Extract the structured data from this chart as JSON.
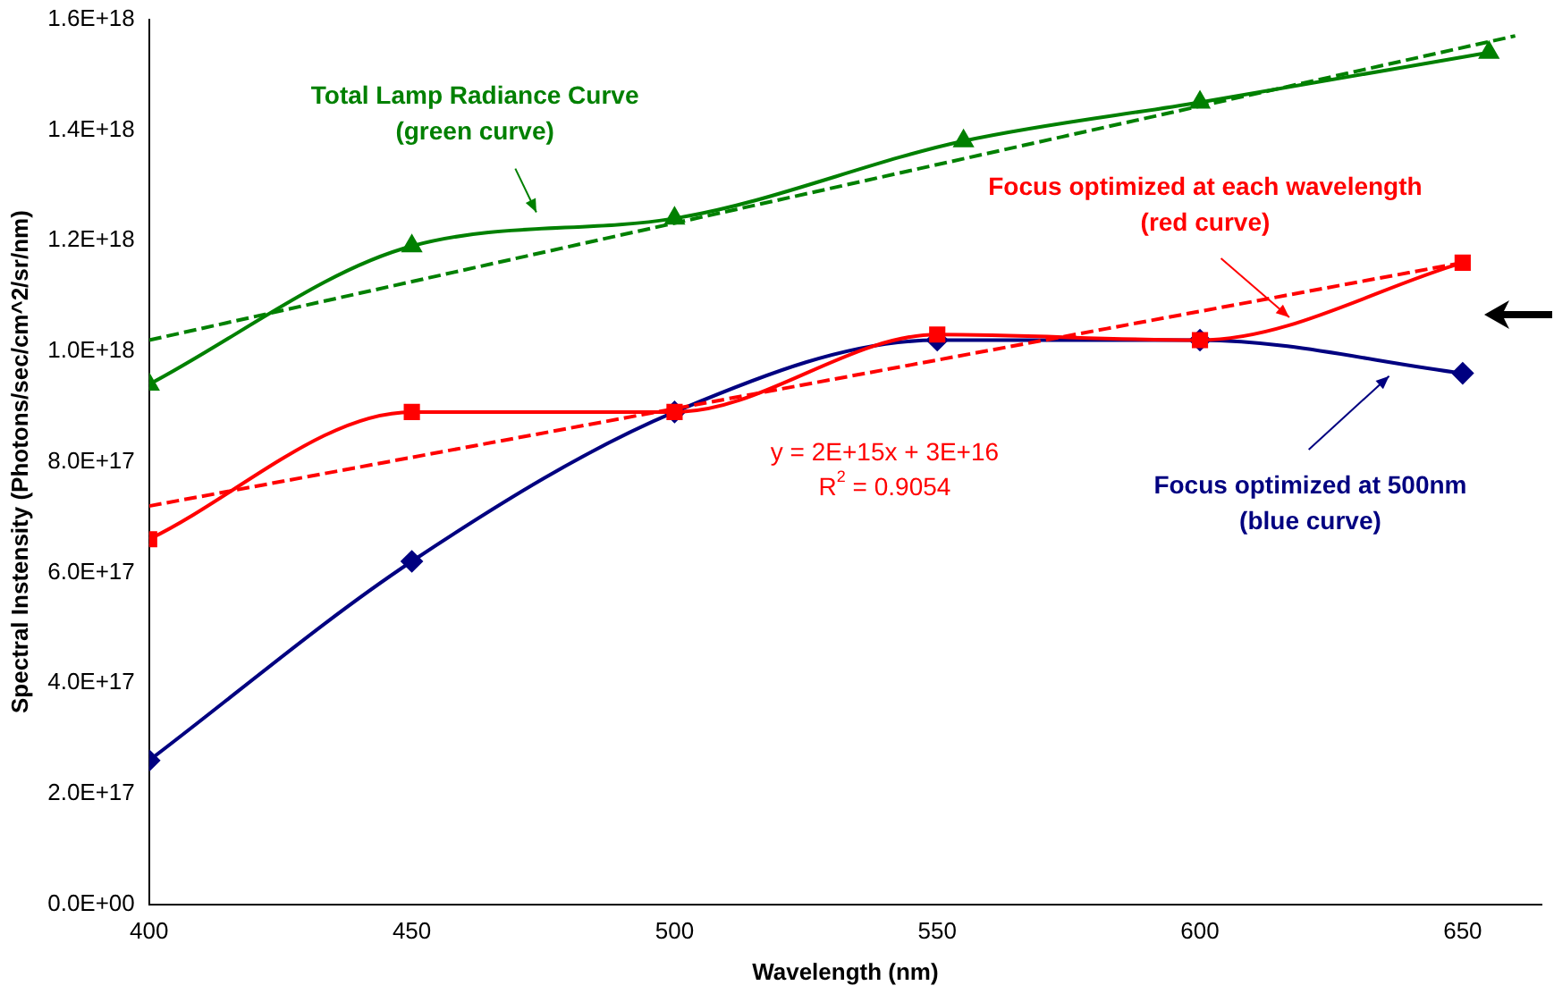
{
  "chart_data": {
    "type": "line",
    "xlabel": "Wavelength (nm)",
    "ylabel": "Spectral Instensity (Photons/sec/cm^2/sr/nm)",
    "xlim": [
      400,
      665
    ],
    "xticks": [
      400,
      450,
      500,
      550,
      600,
      650
    ],
    "ylim": [
      0,
      1.6e+18
    ],
    "yticks": [
      {
        "value": 0,
        "label": "0.0E+00"
      },
      {
        "value": 2e+17,
        "label": "2.0E+17"
      },
      {
        "value": 4e+17,
        "label": "4.0E+17"
      },
      {
        "value": 6e+17,
        "label": "6.0E+17"
      },
      {
        "value": 8e+17,
        "label": "8.0E+17"
      },
      {
        "value": 1e+18,
        "label": "1.0E+18"
      },
      {
        "value": 1.2e+18,
        "label": "1.2E+18"
      },
      {
        "value": 1.4e+18,
        "label": "1.4E+18"
      },
      {
        "value": 1.6e+18,
        "label": "1.6E+18"
      }
    ],
    "grid": false,
    "legend": false,
    "series": [
      {
        "name": "Total Lamp Radiance Curve (green curve)",
        "type": "line",
        "color": "#008000",
        "marker": "triangle",
        "line_style": "solid",
        "x": [
          400,
          450,
          500,
          555,
          600,
          655
        ],
        "values": [
          9.4e+17,
          1.19e+18,
          1.24e+18,
          1.38e+18,
          1.45e+18,
          1.54e+18
        ]
      },
      {
        "type": "line",
        "color": "#008000",
        "marker": "none",
        "line_style": "dashed",
        "x": [
          400,
          660
        ],
        "values": [
          1.02e+18,
          1.57e+18
        ]
      },
      {
        "name": "Focus optimized at each wavelength (red curve)",
        "type": "line",
        "color": "#ff0000",
        "marker": "square",
        "line_style": "solid",
        "x": [
          400,
          450,
          500,
          550,
          600,
          650
        ],
        "values": [
          6.6e+17,
          8.9e+17,
          8.9e+17,
          1.03e+18,
          1.02e+18,
          1.16e+18
        ]
      },
      {
        "type": "line",
        "color": "#ff0000",
        "marker": "none",
        "line_style": "dashed",
        "x": [
          400,
          650
        ],
        "values": [
          7.2e+17,
          1.16e+18
        ]
      },
      {
        "name": "Focus optimized at 500nm (blue curve)",
        "type": "line",
        "color": "#000080",
        "marker": "diamond",
        "line_style": "solid",
        "x": [
          400,
          450,
          500,
          550,
          600,
          650
        ],
        "values": [
          2.6e+17,
          6.2e+17,
          8.9e+17,
          1.02e+18,
          1.02e+18,
          9.6e+17
        ]
      }
    ],
    "annotations": [
      "y = 2E+15x + 3E+16",
      "R$^{2}$ = 0.9054"
    ]
  }
}
